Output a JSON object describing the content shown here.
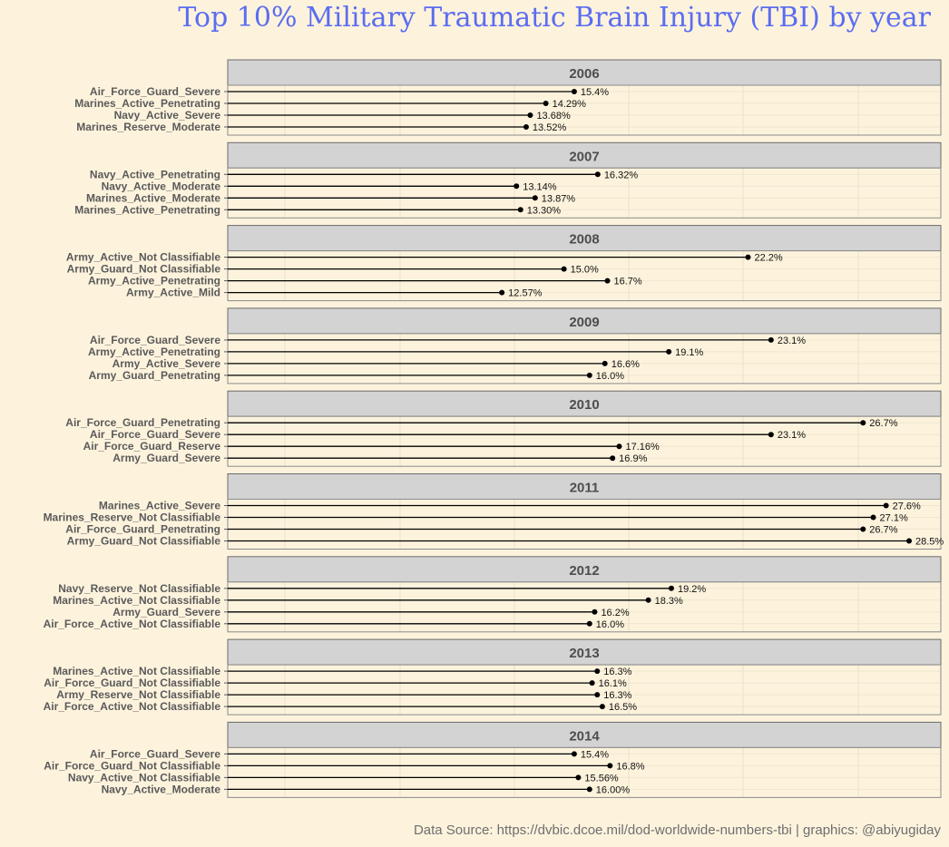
{
  "page": {
    "title": "Top 10% Military Traumatic Brain Injury (TBI) by year",
    "caption": "Data Source: https://dvbic.dcoe.mil/dod-worldwide-numbers-tbi | graphics: @abiyugiday"
  },
  "colors": {
    "background": "#fdf3dd",
    "title": "#5b6df0",
    "strip": "#d3d3d3",
    "panel_border": "#8a8a8a",
    "grid": "#efe6cf",
    "lollipop": "#000000"
  },
  "chart_data": {
    "type": "lollipop",
    "facet": "year",
    "xlim": [
      0,
      28.5
    ],
    "grid": true,
    "panels": [
      {
        "year": "2006",
        "items": [
          {
            "category": "Air_Force_Guard_Severe",
            "value": 15.4,
            "label": "15.4%"
          },
          {
            "category": "Marines_Active_Penetrating",
            "value": 14.29,
            "label": "14.29%"
          },
          {
            "category": "Navy_Active_Severe",
            "value": 13.68,
            "label": "13.68%"
          },
          {
            "category": "Marines_Reserve_Moderate",
            "value": 13.52,
            "label": "13.52%"
          }
        ]
      },
      {
        "year": "2007",
        "items": [
          {
            "category": "Navy_Active_Penetrating",
            "value": 16.32,
            "label": "16.32%"
          },
          {
            "category": "Navy_Active_Moderate",
            "value": 13.14,
            "label": "13.14%"
          },
          {
            "category": "Marines_Active_Moderate",
            "value": 13.87,
            "label": "13.87%"
          },
          {
            "category": "Marines_Active_Penetrating",
            "value": 13.3,
            "label": "13.30%"
          }
        ]
      },
      {
        "year": "2008",
        "items": [
          {
            "category": "Army_Active_Not Classifiable",
            "value": 22.2,
            "label": "22.2%"
          },
          {
            "category": "Army_Guard_Not Classifiable",
            "value": 15.0,
            "label": "15.0%"
          },
          {
            "category": "Army_Active_Penetrating",
            "value": 16.7,
            "label": "16.7%"
          },
          {
            "category": "Army_Active_Mild",
            "value": 12.57,
            "label": "12.57%"
          }
        ]
      },
      {
        "year": "2009",
        "items": [
          {
            "category": "Air_Force_Guard_Severe",
            "value": 23.1,
            "label": "23.1%"
          },
          {
            "category": "Army_Active_Penetrating",
            "value": 19.1,
            "label": "19.1%"
          },
          {
            "category": "Army_Active_Severe",
            "value": 16.6,
            "label": "16.6%"
          },
          {
            "category": "Army_Guard_Penetrating",
            "value": 16.0,
            "label": "16.0%"
          }
        ]
      },
      {
        "year": "2010",
        "items": [
          {
            "category": "Air_Force_Guard_Penetrating",
            "value": 26.7,
            "label": "26.7%"
          },
          {
            "category": "Air_Force_Guard_Severe",
            "value": 23.1,
            "label": "23.1%"
          },
          {
            "category": "Air_Force_Guard_Reserve",
            "value": 17.16,
            "label": "17.16%"
          },
          {
            "category": "Army_Guard_Severe",
            "value": 16.9,
            "label": "16.9%"
          }
        ]
      },
      {
        "year": "2011",
        "items": [
          {
            "category": "Marines_Active_Severe",
            "value": 27.6,
            "label": "27.6%"
          },
          {
            "category": "Marines_Reserve_Not Classifiable",
            "value": 27.1,
            "label": "27.1%"
          },
          {
            "category": "Air_Force_Guard_Penetrating",
            "value": 26.7,
            "label": "26.7%"
          },
          {
            "category": "Army_Guard_Not Classifiable",
            "value": 28.5,
            "label": "28.5%"
          }
        ]
      },
      {
        "year": "2012",
        "items": [
          {
            "category": "Navy_Reserve_Not Classifiable",
            "value": 19.2,
            "label": "19.2%"
          },
          {
            "category": "Marines_Active_Not Classifiable",
            "value": 18.3,
            "label": "18.3%"
          },
          {
            "category": "Army_Guard_Severe",
            "value": 16.2,
            "label": "16.2%"
          },
          {
            "category": "Air_Force_Active_Not Classifiable",
            "value": 16.0,
            "label": "16.0%"
          }
        ]
      },
      {
        "year": "2013",
        "items": [
          {
            "category": "Marines_Active_Not Classifiable",
            "value": 16.3,
            "label": "16.3%"
          },
          {
            "category": "Air_Force_Guard_Not Classifiable",
            "value": 16.1,
            "label": "16.1%"
          },
          {
            "category": "Army_Reserve_Not Classifiable",
            "value": 16.3,
            "label": "16.3%"
          },
          {
            "category": "Air_Force_Active_Not Classifiable",
            "value": 16.5,
            "label": "16.5%"
          }
        ]
      },
      {
        "year": "2014",
        "items": [
          {
            "category": "Air_Force_Guard_Severe",
            "value": 15.4,
            "label": "15.4%"
          },
          {
            "category": "Air_Force_Guard_Not Classifiable",
            "value": 16.8,
            "label": "16.8%"
          },
          {
            "category": "Navy_Active_Not Classifiable",
            "value": 15.56,
            "label": "15.56%"
          },
          {
            "category": "Navy_Active_Moderate",
            "value": 16.0,
            "label": "16.00%"
          }
        ]
      }
    ]
  }
}
